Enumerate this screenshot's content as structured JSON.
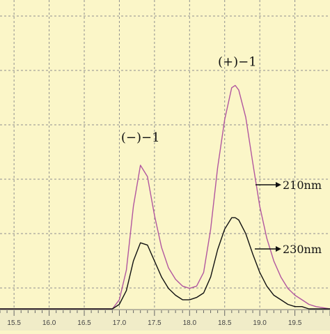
{
  "chart_data": {
    "type": "line",
    "title": "",
    "xlabel": "",
    "ylabel": "",
    "xlim": [
      15.3,
      20.0
    ],
    "ylim": [
      0,
      1.0
    ],
    "x_ticks": [
      "15.5",
      "16.0",
      "16.5",
      "17.0",
      "17.5",
      "18.0",
      "18.5",
      "19.0",
      "19.5"
    ],
    "grid": true,
    "background": "#fbf6c8",
    "series": [
      {
        "name": "210nm",
        "color": "#b1569f",
        "x": [
          15.3,
          16.5,
          16.9,
          17.0,
          17.1,
          17.2,
          17.3,
          17.4,
          17.5,
          17.6,
          17.7,
          17.8,
          17.9,
          18.0,
          18.1,
          18.2,
          18.3,
          18.4,
          18.5,
          18.6,
          18.65,
          18.7,
          18.8,
          18.9,
          19.0,
          19.1,
          19.2,
          19.3,
          19.4,
          19.5,
          19.6,
          19.7,
          19.8,
          20.0
        ],
        "y": [
          0.0,
          0.0,
          0.0,
          0.04,
          0.17,
          0.45,
          0.63,
          0.58,
          0.41,
          0.27,
          0.18,
          0.13,
          0.1,
          0.09,
          0.1,
          0.16,
          0.35,
          0.62,
          0.83,
          0.97,
          0.98,
          0.96,
          0.84,
          0.64,
          0.45,
          0.31,
          0.21,
          0.14,
          0.09,
          0.06,
          0.04,
          0.02,
          0.01,
          0.0
        ]
      },
      {
        "name": "230nm",
        "color": "#111111",
        "x": [
          15.3,
          16.5,
          16.9,
          17.0,
          17.1,
          17.2,
          17.3,
          17.4,
          17.5,
          17.6,
          17.7,
          17.8,
          17.9,
          18.0,
          18.1,
          18.2,
          18.3,
          18.4,
          18.5,
          18.6,
          18.65,
          18.7,
          18.8,
          18.9,
          19.0,
          19.1,
          19.2,
          19.3,
          19.4,
          19.5,
          19.6,
          19.7,
          19.8,
          20.0
        ],
        "y": [
          0.0,
          0.0,
          0.0,
          0.02,
          0.08,
          0.21,
          0.29,
          0.28,
          0.21,
          0.14,
          0.09,
          0.06,
          0.04,
          0.04,
          0.05,
          0.07,
          0.14,
          0.26,
          0.35,
          0.4,
          0.4,
          0.39,
          0.33,
          0.24,
          0.16,
          0.1,
          0.06,
          0.04,
          0.02,
          0.01,
          0.01,
          0.0,
          0.0,
          0.0
        ]
      }
    ],
    "annotations": [
      {
        "text": "(−)−1",
        "x": 17.3,
        "y": 0.63
      },
      {
        "text": "(+)−1",
        "x": 18.65,
        "y": 0.98
      }
    ]
  }
}
